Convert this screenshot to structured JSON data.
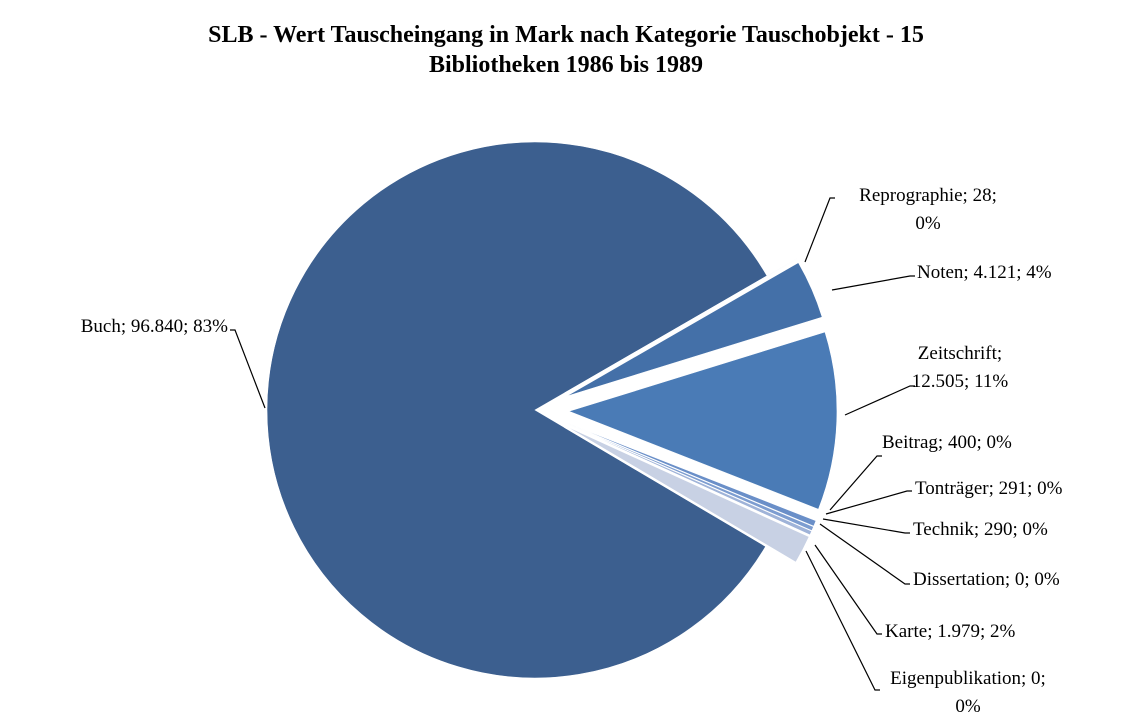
{
  "chart_data": {
    "type": "pie",
    "title": "SLB - Wert Tauscheingang in Mark nach Kategorie Tauschobjekt - 15 Bibliotheken 1986 bis 1989",
    "categories": [
      "Buch",
      "Reprographie",
      "Noten",
      "Zeitschrift",
      "Beitrag",
      "Tonträger",
      "Technik",
      "Dissertation",
      "Karte",
      "Eigenpublikation"
    ],
    "values": [
      96840,
      28,
      4121,
      12505,
      400,
      291,
      290,
      0,
      1979,
      0
    ],
    "value_labels": [
      "Buch; 96.840; 83%",
      "Reprographie; 28; 0%",
      "Noten; 4.121; 4%",
      "Zeitschrift; 12.505; 11%",
      "Beitrag; 400; 0%",
      "Tonträger; 291; 0%",
      "Technik; 290; 0%",
      "Dissertation; 0; 0%",
      "Karte; 1.979; 2%",
      "Eigenpublikation; 0; 0%"
    ],
    "colors": [
      "#3c5f8f",
      "#5b80b8",
      "#4470a8",
      "#4a7bb6",
      "#6a8fc8",
      "#7d9dd0",
      "#9fb3d8",
      "#b3c2df",
      "#c8d1e4",
      "#d7dcea"
    ]
  }
}
